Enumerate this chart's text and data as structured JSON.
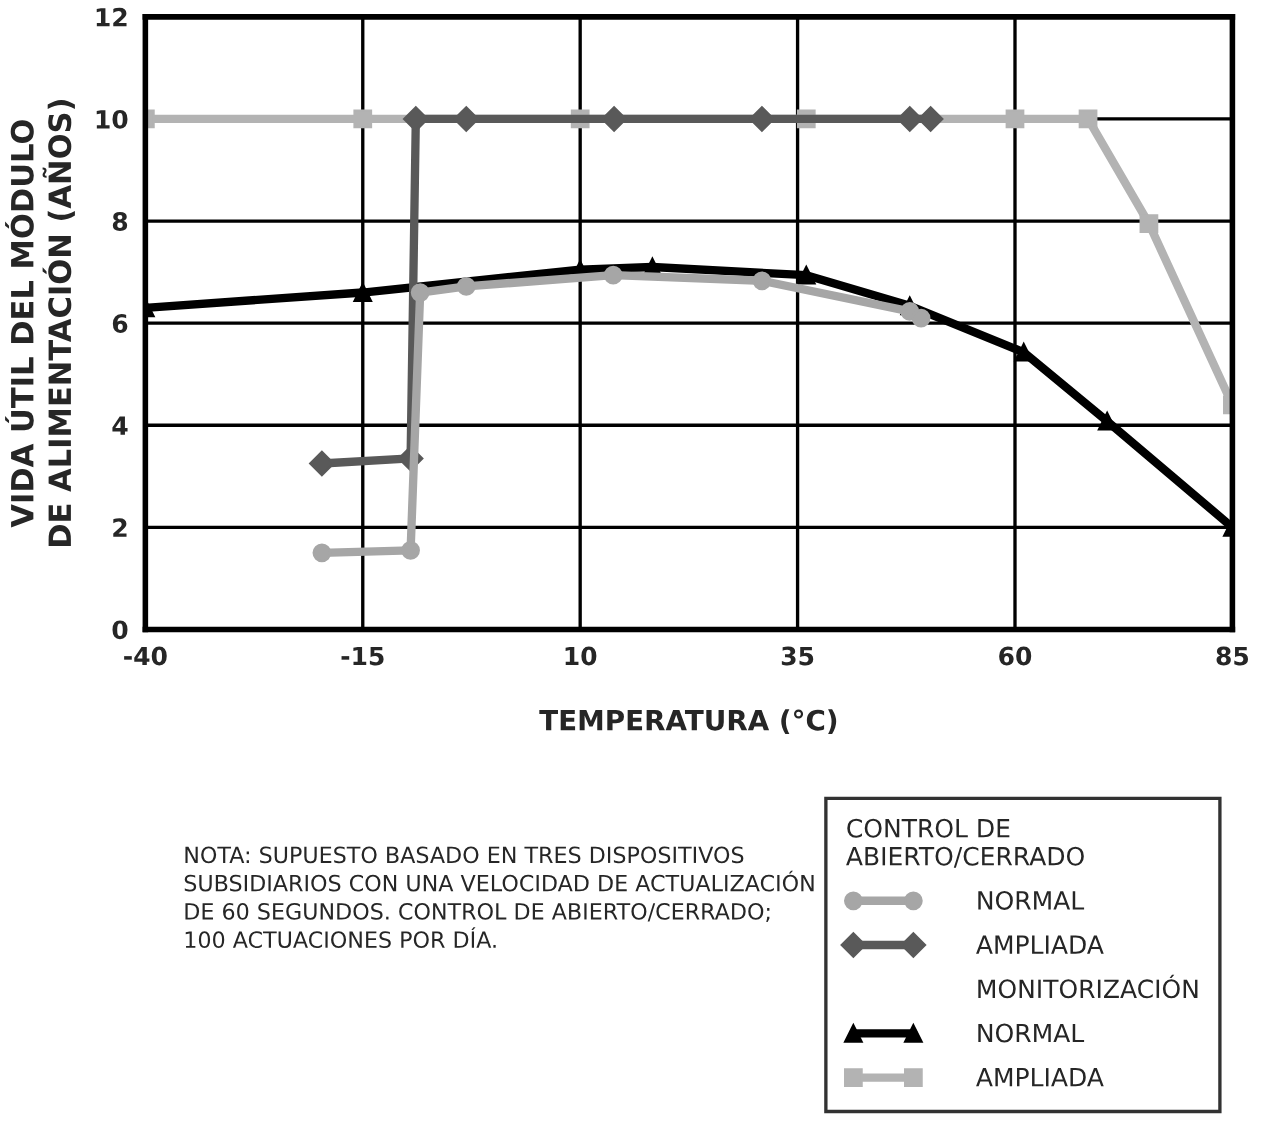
{
  "chart_data": {
    "type": "line",
    "xlabel": "TEMPERATURA (°C)",
    "ylabel": "VIDA ÚTIL DEL MÓDULO\nDE ALIMENTACIÓN (AÑOS)",
    "xlim": [
      -40,
      85
    ],
    "xticks": [
      -40,
      -15,
      10,
      35,
      60,
      85
    ],
    "ylim": [
      0,
      12
    ],
    "yticks": [
      0,
      2,
      4,
      6,
      8,
      10,
      12
    ],
    "grid": true,
    "legend": "bottom right",
    "legend_title": "CONTROL DE\nABIERTO/CERRADO",
    "annotations": [
      "NOTA: SUPUESTO BASADO EN TRES DISPOSITIVOS\nSUBSIDIARIOS CON UNA VELOCIDAD DE ACTUALIZACIÓN\nDE 60 SEGUNDOS. CONTROL DE ABIERTO/CERRADO;\n100 ACTUACIONES POR DÍA.",
      "MONITORIZACIÓN"
    ],
    "series": [
      {
        "name": "NORMAL",
        "color": "#a6a6a6",
        "marker": "circle",
        "x": [
          -19.7,
          -9.5,
          -8.4,
          -3.1,
          13.8,
          30.9,
          47.9,
          49.2
        ],
        "values": [
          1.5,
          1.55,
          6.6,
          6.72,
          6.94,
          6.83,
          6.23,
          6.1
        ]
      },
      {
        "name": "AMPLIADA",
        "color": "#595959",
        "marker": "diamond",
        "x": [
          -19.7,
          -9.5,
          -8.9,
          -3.1,
          13.9,
          30.9,
          47.9,
          50.3
        ],
        "values": [
          3.25,
          3.35,
          10,
          10,
          10,
          10,
          10,
          10
        ]
      },
      {
        "name": "NORMAL",
        "color": "#000000",
        "marker": "triangle",
        "x": [
          -40,
          -15,
          10,
          18.3,
          36,
          47.9,
          61,
          70.6,
          85
        ],
        "values": [
          6.3,
          6.6,
          7.05,
          7.1,
          6.94,
          6.34,
          5.43,
          4.08,
          2
        ]
      },
      {
        "name": "AMPLIADA",
        "color": "#b3b3b3",
        "marker": "square",
        "x": [
          -40,
          -15,
          10,
          36,
          60,
          68.4,
          75.4,
          85
        ],
        "values": [
          10,
          10,
          10,
          10,
          10,
          10,
          7.95,
          4.4
        ]
      }
    ]
  }
}
